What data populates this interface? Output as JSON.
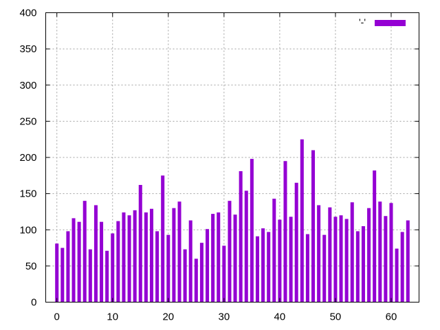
{
  "chart_data": {
    "type": "bar",
    "legend": {
      "label": "'-'",
      "placement": "top-right",
      "color": "#9400d3"
    },
    "bar_color": "#9400d3",
    "grid": true,
    "xlim": [
      -2,
      65
    ],
    "ylim": [
      0,
      400
    ],
    "x_ticks": [
      0,
      10,
      20,
      30,
      40,
      50,
      60
    ],
    "y_ticks": [
      0,
      50,
      100,
      150,
      200,
      250,
      300,
      350,
      400
    ],
    "x": [
      0,
      1,
      2,
      3,
      4,
      5,
      6,
      7,
      8,
      9,
      10,
      11,
      12,
      13,
      14,
      15,
      16,
      17,
      18,
      19,
      20,
      21,
      22,
      23,
      24,
      25,
      26,
      27,
      28,
      29,
      30,
      31,
      32,
      33,
      34,
      35,
      36,
      37,
      38,
      39,
      40,
      41,
      42,
      43,
      44,
      45,
      46,
      47,
      48,
      49,
      50,
      51,
      52,
      53,
      54,
      55,
      56,
      57,
      58,
      59,
      60,
      61,
      62,
      63
    ],
    "values": [
      81,
      75,
      98,
      116,
      111,
      140,
      73,
      134,
      111,
      71,
      95,
      112,
      124,
      120,
      127,
      162,
      124,
      129,
      98,
      175,
      93,
      130,
      139,
      73,
      113,
      60,
      82,
      101,
      122,
      124,
      78,
      140,
      121,
      181,
      154,
      198,
      91,
      102,
      97,
      143,
      114,
      195,
      118,
      165,
      225,
      94,
      210,
      134,
      93,
      131,
      118,
      120,
      115,
      138,
      98,
      105,
      130,
      182,
      139,
      119,
      137,
      74,
      97,
      113
    ],
    "title": "",
    "xlabel": "",
    "ylabel": ""
  }
}
